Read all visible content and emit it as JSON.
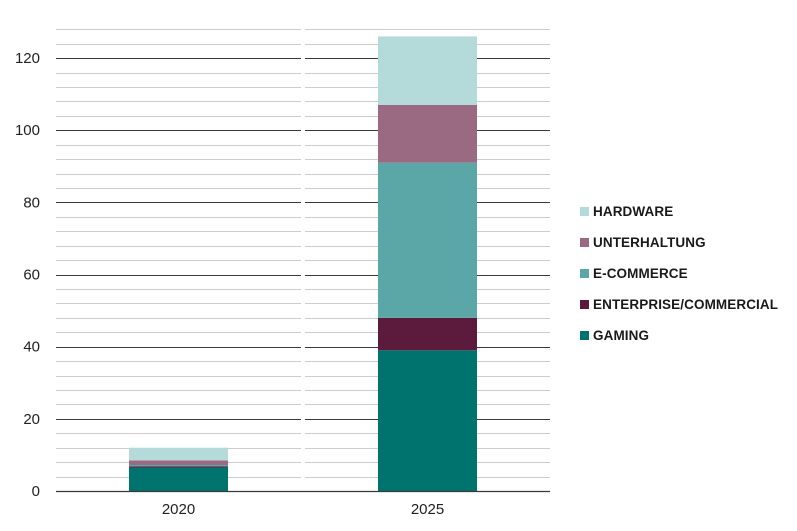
{
  "chart_data": {
    "type": "bar",
    "stacked": true,
    "categories": [
      "2020",
      "2025"
    ],
    "series": [
      {
        "name": "GAMING",
        "color": "#00736f",
        "values": [
          6.5,
          39
        ]
      },
      {
        "name": "ENTERPRISE/COMMERCIAL",
        "color": "#5c1a3c",
        "values": [
          0.3,
          9
        ]
      },
      {
        "name": "E-COMMERCE",
        "color": "#5ba6a7",
        "values": [
          0.4,
          43
        ]
      },
      {
        "name": "UNTERHALTUNG",
        "color": "#9a6a82",
        "values": [
          1.3,
          16
        ]
      },
      {
        "name": "HARDWARE",
        "color": "#b4dada",
        "values": [
          3.5,
          19
        ]
      }
    ],
    "ylim": [
      0,
      130
    ],
    "yticks": [
      0,
      20,
      40,
      60,
      80,
      100,
      120
    ],
    "minor_gridline_step": 4,
    "grid": true,
    "legend_position": "right",
    "legend_order": [
      "HARDWARE",
      "UNTERHALTUNG",
      "E-COMMERCE",
      "ENTERPRISE/COMMERCIAL",
      "GAMING"
    ]
  }
}
